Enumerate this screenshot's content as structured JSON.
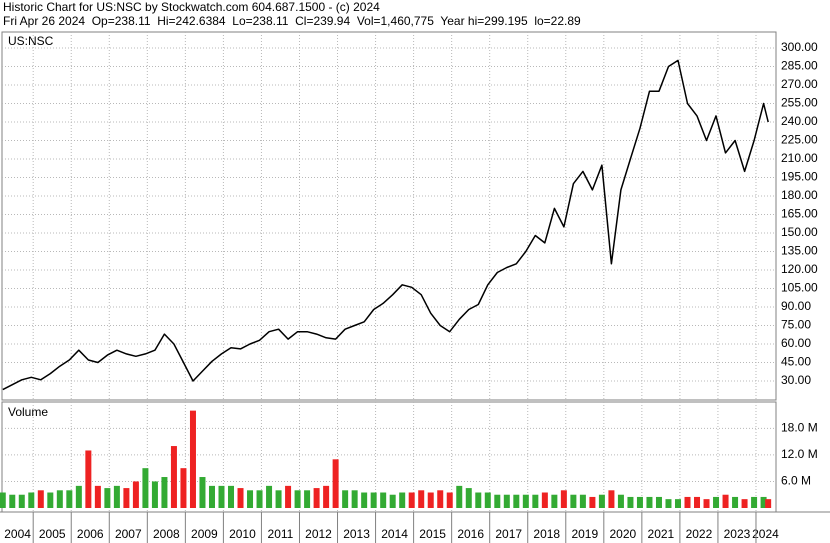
{
  "chart_data": [
    {
      "type": "line",
      "title": "Historic Chart for US:NSC by Stockwatch.com 604.687.1500 - (c) 2024",
      "subtitle": "Fri Apr 26 2024  Op=238.11  Hi=242.6384  Lo=238.11  Cl=239.94  Vol=1,460,775  Year hi=299.195  lo=22.89",
      "x": [
        2004.2,
        2004.45,
        2004.7,
        2004.95,
        2005.2,
        2005.45,
        2005.7,
        2005.95,
        2006.2,
        2006.45,
        2006.7,
        2006.95,
        2007.2,
        2007.45,
        2007.7,
        2007.95,
        2008.2,
        2008.45,
        2008.7,
        2008.95,
        2009.2,
        2009.45,
        2009.7,
        2009.95,
        2010.2,
        2010.45,
        2010.7,
        2010.95,
        2011.2,
        2011.45,
        2011.7,
        2011.95,
        2012.2,
        2012.45,
        2012.7,
        2012.95,
        2013.2,
        2013.45,
        2013.7,
        2013.95,
        2014.2,
        2014.45,
        2014.7,
        2014.95,
        2015.2,
        2015.45,
        2015.7,
        2015.95,
        2016.2,
        2016.45,
        2016.7,
        2016.95,
        2017.2,
        2017.45,
        2017.7,
        2017.95,
        2018.2,
        2018.45,
        2018.7,
        2018.95,
        2019.2,
        2019.45,
        2019.7,
        2019.95,
        2020.2,
        2020.45,
        2020.7,
        2020.95,
        2021.2,
        2021.45,
        2021.7,
        2021.95,
        2022.2,
        2022.45,
        2022.7,
        2022.95,
        2023.2,
        2023.45,
        2023.7,
        2023.95,
        2024.2,
        2024.32
      ],
      "series": [
        {
          "name": "US:NSC",
          "color": "#000000",
          "values": [
            23,
            27,
            31,
            33,
            31,
            36,
            42,
            47,
            55,
            47,
            45,
            51,
            55,
            52,
            50,
            52,
            55,
            68,
            60,
            45,
            30,
            38,
            46,
            52,
            57,
            56,
            60,
            63,
            70,
            72,
            64,
            70,
            70,
            68,
            65,
            64,
            72,
            75,
            78,
            88,
            93,
            100,
            108,
            106,
            100,
            85,
            75,
            70,
            80,
            88,
            92,
            108,
            118,
            122,
            125,
            135,
            148,
            142,
            170,
            155,
            190,
            200,
            185,
            205,
            125,
            185,
            210,
            235,
            265,
            265,
            285,
            290,
            255,
            245,
            225,
            245,
            215,
            225,
            200,
            225,
            255,
            240
          ]
        }
      ],
      "xlim": [
        2004.18,
        2024.5
      ],
      "xticks": [
        2004,
        2005,
        2006,
        2007,
        2008,
        2009,
        2010,
        2011,
        2012,
        2013,
        2014,
        2015,
        2016,
        2017,
        2018,
        2019,
        2020,
        2021,
        2022,
        2023,
        2024
      ],
      "ylim": [
        14.6,
        313
      ],
      "yticks": [
        {
          "value": 30,
          "label": "30.00"
        },
        {
          "value": 45,
          "label": "45.00"
        },
        {
          "value": 60,
          "label": "60.00"
        },
        {
          "value": 75,
          "label": "75.00"
        },
        {
          "value": 90,
          "label": "90.00"
        },
        {
          "value": 105,
          "label": "105.00"
        },
        {
          "value": 120,
          "label": "120.00"
        },
        {
          "value": 135,
          "label": "135.00"
        },
        {
          "value": 150,
          "label": "150.00"
        },
        {
          "value": 165,
          "label": "165.00"
        },
        {
          "value": 180,
          "label": "180.00"
        },
        {
          "value": 195,
          "label": "195.00"
        },
        {
          "value": 210,
          "label": "210.00"
        },
        {
          "value": 225,
          "label": "225.00"
        },
        {
          "value": 240,
          "label": "240.00"
        },
        {
          "value": 255,
          "label": "255.00"
        },
        {
          "value": 270,
          "label": "270.00"
        },
        {
          "value": 285,
          "label": "285.00"
        },
        {
          "value": 300,
          "label": "300.00"
        }
      ],
      "grid": true
    },
    {
      "type": "bar",
      "label": "Volume",
      "x": [
        2004.2,
        2004.45,
        2004.7,
        2004.95,
        2005.2,
        2005.45,
        2005.7,
        2005.95,
        2006.2,
        2006.45,
        2006.7,
        2006.95,
        2007.2,
        2007.45,
        2007.7,
        2007.95,
        2008.2,
        2008.45,
        2008.7,
        2008.95,
        2009.2,
        2009.45,
        2009.7,
        2009.95,
        2010.2,
        2010.45,
        2010.7,
        2010.95,
        2011.2,
        2011.45,
        2011.7,
        2011.95,
        2012.2,
        2012.45,
        2012.7,
        2012.95,
        2013.2,
        2013.45,
        2013.7,
        2013.95,
        2014.2,
        2014.45,
        2014.7,
        2014.95,
        2015.2,
        2015.45,
        2015.7,
        2015.95,
        2016.2,
        2016.45,
        2016.7,
        2016.95,
        2017.2,
        2017.45,
        2017.7,
        2017.95,
        2018.2,
        2018.45,
        2018.7,
        2018.95,
        2019.2,
        2019.45,
        2019.7,
        2019.95,
        2020.2,
        2020.45,
        2020.7,
        2020.95,
        2021.2,
        2021.45,
        2021.7,
        2021.95,
        2022.2,
        2022.45,
        2022.7,
        2022.95,
        2023.2,
        2023.45,
        2023.7,
        2023.95,
        2024.2,
        2024.32
      ],
      "values": [
        3.5,
        3,
        3,
        3.5,
        4,
        3.5,
        4,
        4,
        5,
        13,
        5,
        4.5,
        5,
        4.5,
        6,
        9,
        6,
        7,
        14,
        9,
        22,
        7,
        5,
        5,
        5,
        4.5,
        4,
        4,
        5,
        4,
        5,
        4,
        4,
        4.5,
        5,
        11,
        4,
        4,
        3.5,
        3.5,
        3.5,
        3,
        3.5,
        3.5,
        4,
        3.5,
        4,
        3.5,
        5,
        4.5,
        3.5,
        3.5,
        3,
        3,
        3,
        3,
        3,
        3.5,
        3,
        4,
        3,
        3,
        2.5,
        3,
        4,
        3,
        2.5,
        2.5,
        2.5,
        2.5,
        2,
        2,
        2.5,
        2.5,
        2,
        2.5,
        3,
        2.5,
        2,
        2.5,
        2.5,
        2
      ],
      "up_color": "#33aa33",
      "down_color": "#ee2222",
      "xlim": [
        2004.18,
        2024.5
      ],
      "ylim": [
        0,
        23.5
      ],
      "yticks": [
        {
          "value": 6,
          "label": "6.0 M"
        },
        {
          "value": 12,
          "label": "12.0 M"
        },
        {
          "value": 18,
          "label": "18.0 M"
        }
      ],
      "grid": true
    }
  ]
}
